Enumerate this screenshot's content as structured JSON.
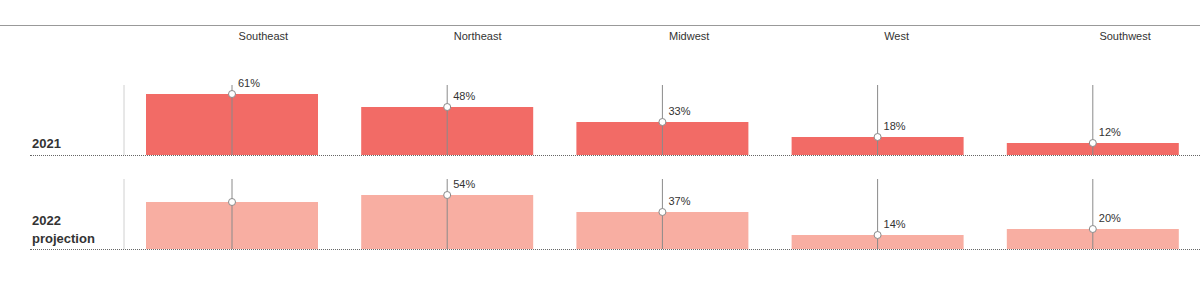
{
  "chart_data": {
    "type": "bar",
    "categories": [
      "Southeast",
      "Northeast",
      "Midwest",
      "West",
      "Southwest"
    ],
    "series": [
      {
        "name": "2021",
        "color": "#f26b66",
        "values": [
          61,
          48,
          33,
          18,
          12
        ],
        "value_labels": [
          "61%",
          "48%",
          "33%",
          "18%",
          "12%"
        ]
      },
      {
        "name": "2022 projection",
        "color": "#f8aea2",
        "values": [
          47,
          54,
          37,
          14,
          20
        ],
        "value_labels": [
          null,
          "54%",
          "37%",
          "14%",
          "20%"
        ]
      }
    ],
    "ylim": [
      0,
      70
    ],
    "data_labels": true,
    "tick_labels": "x",
    "grid": false
  }
}
